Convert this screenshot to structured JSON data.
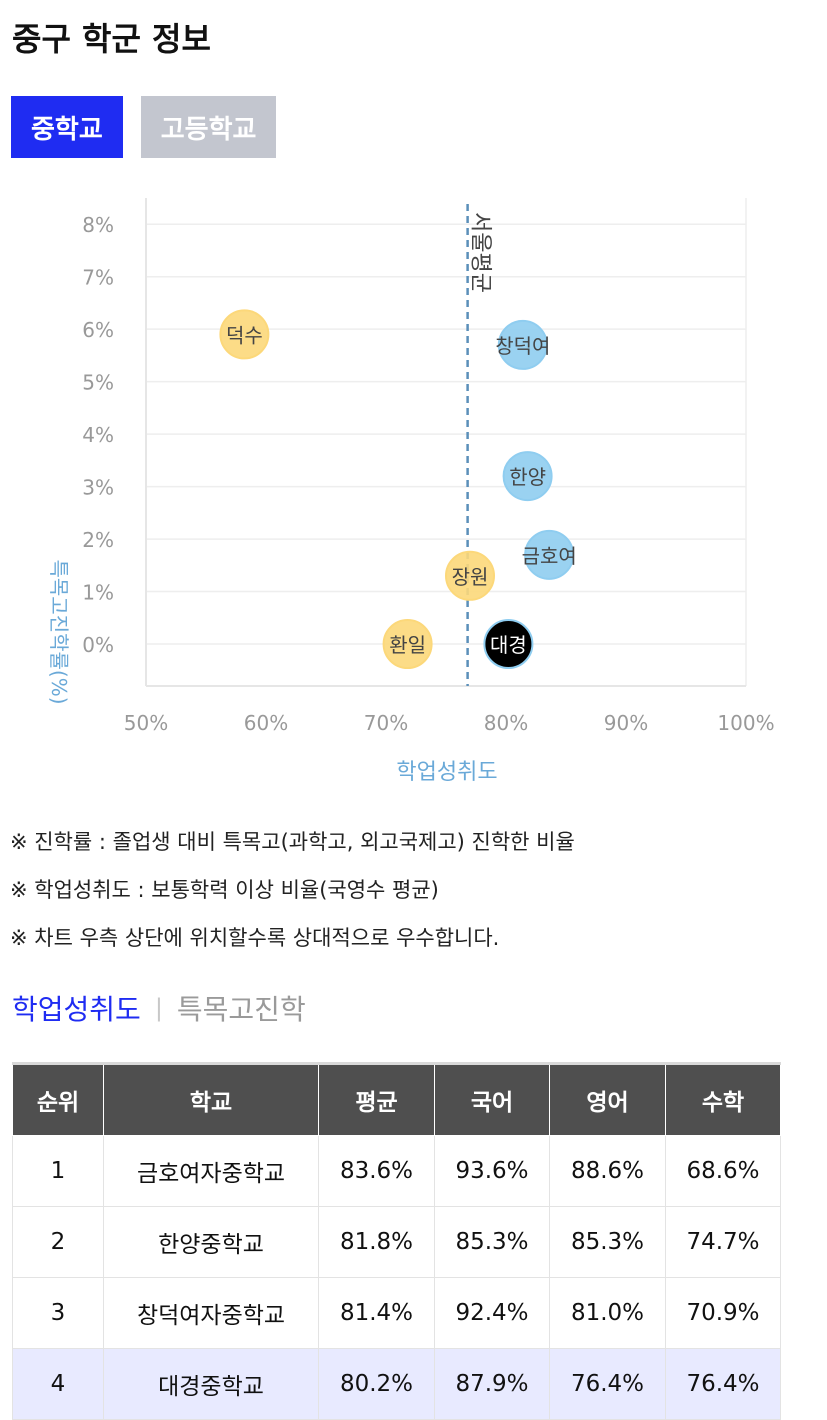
{
  "page": {
    "title": "중구 학군 정보"
  },
  "tabs": [
    {
      "label": "중학교",
      "active": true
    },
    {
      "label": "고등학교",
      "active": false
    }
  ],
  "chart_data": {
    "type": "scatter",
    "xlabel": "학업성취도",
    "ylabel": "특목고진학률(%)",
    "xlim": [
      50,
      100
    ],
    "ylim": [
      -0.8,
      8.5
    ],
    "x_ticks": [
      "50%",
      "60%",
      "70%",
      "80%",
      "90%",
      "100%"
    ],
    "y_ticks": [
      "0%",
      "1%",
      "2%",
      "3%",
      "4%",
      "5%",
      "6%",
      "7%",
      "8%"
    ],
    "grid": true,
    "reference_line": {
      "x": 76.8,
      "label": "서울평균",
      "color": "#5b8fb9"
    },
    "points": [
      {
        "label": "덕수",
        "x": 58.2,
        "y": 5.9,
        "color": "#fcd87a"
      },
      {
        "label": "창덕여",
        "x": 81.4,
        "y": 5.7,
        "color": "#8fcdf0"
      },
      {
        "label": "한양",
        "x": 81.8,
        "y": 3.2,
        "color": "#8fcdf0"
      },
      {
        "label": "금호여",
        "x": 83.6,
        "y": 1.7,
        "color": "#8fcdf0"
      },
      {
        "label": "장원",
        "x": 77.0,
        "y": 1.3,
        "color": "#fcd87a"
      },
      {
        "label": "환일",
        "x": 71.8,
        "y": 0.0,
        "color": "#fcd87a"
      },
      {
        "label": "대경",
        "x": 80.2,
        "y": 0.0,
        "color": "#000000"
      }
    ]
  },
  "notes": [
    "※ 진학률 : 졸업생 대비 특목고(과학고, 외고국제고) 진학한 비율",
    "※ 학업성취도 : 보통학력 이상 비율(국영수 평균)",
    "※ 차트 우측 상단에 위치할수록 상대적으로 우수합니다."
  ],
  "subtabs": [
    {
      "label": "학업성취도",
      "active": true
    },
    {
      "label": "특목고진학",
      "active": false
    }
  ],
  "subtab_separator": "|",
  "table": {
    "headers": [
      "순위",
      "학교",
      "평균",
      "국어",
      "영어",
      "수학"
    ],
    "rows": [
      [
        "1",
        "금호여자중학교",
        "83.6%",
        "93.6%",
        "88.6%",
        "68.6%"
      ],
      [
        "2",
        "한양중학교",
        "81.8%",
        "85.3%",
        "85.3%",
        "74.7%"
      ],
      [
        "3",
        "창덕여자중학교",
        "81.4%",
        "92.4%",
        "81.0%",
        "70.9%"
      ],
      [
        "4",
        "대경중학교",
        "80.2%",
        "87.9%",
        "76.4%",
        "76.4%"
      ]
    ],
    "highlight_row": 3
  }
}
